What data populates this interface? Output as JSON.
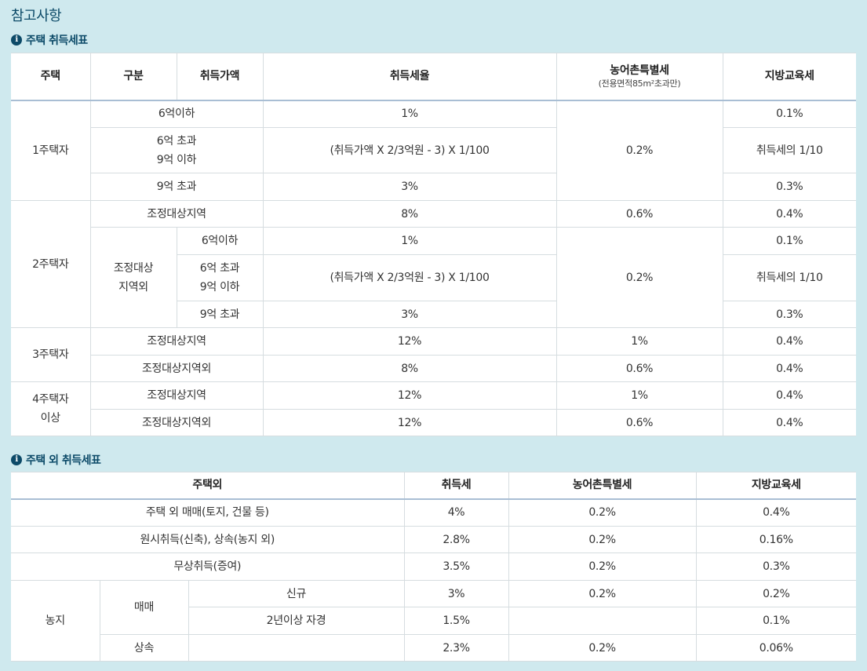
{
  "page_title": "참고사항",
  "section1": {
    "title": "주택 취득세표",
    "headers": {
      "house": "주택",
      "category": "구분",
      "price": "취득가액",
      "rate": "취득세율",
      "rural_tax": "농어촌특별세",
      "rural_tax_note": "(전용면적85m²초과만)",
      "edu_tax": "지방교육세"
    },
    "rows": {
      "h1": "1주택자",
      "h1_r1_price": "6억이하",
      "h1_r1_rate": "1%",
      "h1_rural": "0.2%",
      "h1_r1_edu": "0.1%",
      "h1_r2_price_a": "6억 초과",
      "h1_r2_price_b": "9억 이하",
      "h1_r2_rate": "(취득가액 X 2/3억원 - 3) X 1/100",
      "h1_r2_edu": "취득세의 1/10",
      "h1_r3_price": "9억 초과",
      "h1_r3_rate": "3%",
      "h1_r3_edu": "0.3%",
      "h2": "2주택자",
      "h2_r1_cat": "조정대상지역",
      "h2_r1_rate": "8%",
      "h2_r1_rural": "0.6%",
      "h2_r1_edu": "0.4%",
      "h2_cat2_a": "조정대상",
      "h2_cat2_b": "지역외",
      "h2_r2_price": "6억이하",
      "h2_r2_rate": "1%",
      "h2_rural2": "0.2%",
      "h2_r2_edu": "0.1%",
      "h2_r3_price_a": "6억 초과",
      "h2_r3_price_b": "9억 이하",
      "h2_r3_rate": "(취득가액 X 2/3억원 - 3) X 1/100",
      "h2_r3_edu": "취득세의 1/10",
      "h2_r4_price": "9억 초과",
      "h2_r4_rate": "3%",
      "h2_r4_edu": "0.3%",
      "h3": "3주택자",
      "h3_r1_cat": "조정대상지역",
      "h3_r1_rate": "12%",
      "h3_r1_rural": "1%",
      "h3_r1_edu": "0.4%",
      "h3_r2_cat": "조정대상지역외",
      "h3_r2_rate": "8%",
      "h3_r2_rural": "0.6%",
      "h3_r2_edu": "0.4%",
      "h4_a": "4주택자",
      "h4_b": "이상",
      "h4_r1_cat": "조정대상지역",
      "h4_r1_rate": "12%",
      "h4_r1_rural": "1%",
      "h4_r1_edu": "0.4%",
      "h4_r2_cat": "조정대상지역외",
      "h4_r2_rate": "12%",
      "h4_r2_rural": "0.6%",
      "h4_r2_edu": "0.4%"
    }
  },
  "section2": {
    "title": "주택 외 취득세표",
    "headers": {
      "type": "주택외",
      "tax": "취득세",
      "rural_tax": "농어촌특별세",
      "edu_tax": "지방교육세"
    },
    "rows": [
      {
        "type": "주택 외 매매(토지, 건물 등)",
        "tax": "4%",
        "rural": "0.2%",
        "edu": "0.4%"
      },
      {
        "type": "원시취득(신축), 상속(농지 외)",
        "tax": "2.8%",
        "rural": "0.2%",
        "edu": "0.16%"
      },
      {
        "type": "무상취득(증여)",
        "tax": "3.5%",
        "rural": "0.2%",
        "edu": "0.3%"
      }
    ],
    "farmland": {
      "label": "농지",
      "sale_label": "매매",
      "new_label": "신규",
      "new_tax": "3%",
      "new_rural": "0.2%",
      "new_edu": "0.2%",
      "self_label": "2년이상 자경",
      "self_tax": "1.5%",
      "self_rural": "",
      "self_edu": "0.1%",
      "inherit_label": "상속",
      "inherit_sub": "",
      "inherit_tax": "2.3%",
      "inherit_rural": "0.2%",
      "inherit_edu": "0.06%"
    }
  }
}
